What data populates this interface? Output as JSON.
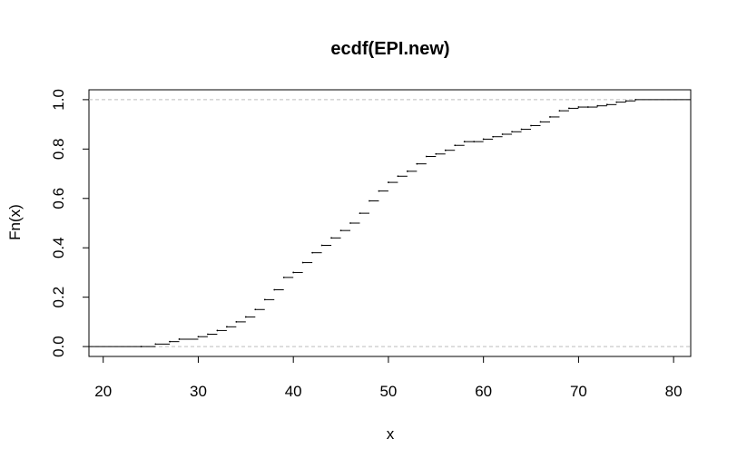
{
  "chart_data": {
    "type": "line",
    "subtype": "ecdf-step",
    "title": "ecdf(EPI.new)",
    "xlabel": "x",
    "ylabel": "Fn(x)",
    "xlim": [
      18.5,
      81.8
    ],
    "ylim": [
      -0.04,
      1.04
    ],
    "x_ticks": [
      20,
      30,
      40,
      50,
      60,
      70,
      80
    ],
    "x_tick_labels": [
      "20",
      "30",
      "40",
      "50",
      "60",
      "70",
      "80"
    ],
    "y_ticks": [
      0.0,
      0.2,
      0.4,
      0.6,
      0.8,
      1.0
    ],
    "y_tick_labels": [
      "0.0",
      "0.2",
      "0.4",
      "0.6",
      "0.8",
      "1.0"
    ],
    "reference_lines": [
      0,
      1
    ],
    "reference_line_style": "dashed",
    "reference_line_color": "#bebebe",
    "series": [
      {
        "color": "#000000",
        "x": [
          24,
          25.5,
          27,
          28,
          30,
          31,
          32,
          33,
          34,
          35,
          36,
          37,
          38,
          39,
          40,
          41,
          42,
          43,
          44,
          45,
          46,
          47,
          48,
          49,
          50,
          51,
          52,
          53,
          54,
          55,
          56,
          57,
          58,
          59,
          60,
          61,
          62,
          63,
          64,
          65,
          66,
          67,
          68,
          69,
          70,
          71,
          72,
          73,
          74,
          75,
          76
        ],
        "y": [
          0.0,
          0.01,
          0.02,
          0.03,
          0.04,
          0.05,
          0.065,
          0.08,
          0.1,
          0.12,
          0.15,
          0.19,
          0.23,
          0.28,
          0.3,
          0.34,
          0.38,
          0.41,
          0.44,
          0.47,
          0.5,
          0.54,
          0.59,
          0.63,
          0.665,
          0.69,
          0.71,
          0.74,
          0.77,
          0.78,
          0.795,
          0.815,
          0.83,
          0.83,
          0.84,
          0.85,
          0.86,
          0.87,
          0.88,
          0.895,
          0.91,
          0.93,
          0.955,
          0.965,
          0.97,
          0.97,
          0.975,
          0.98,
          0.99,
          0.995,
          1.0
        ]
      }
    ]
  }
}
